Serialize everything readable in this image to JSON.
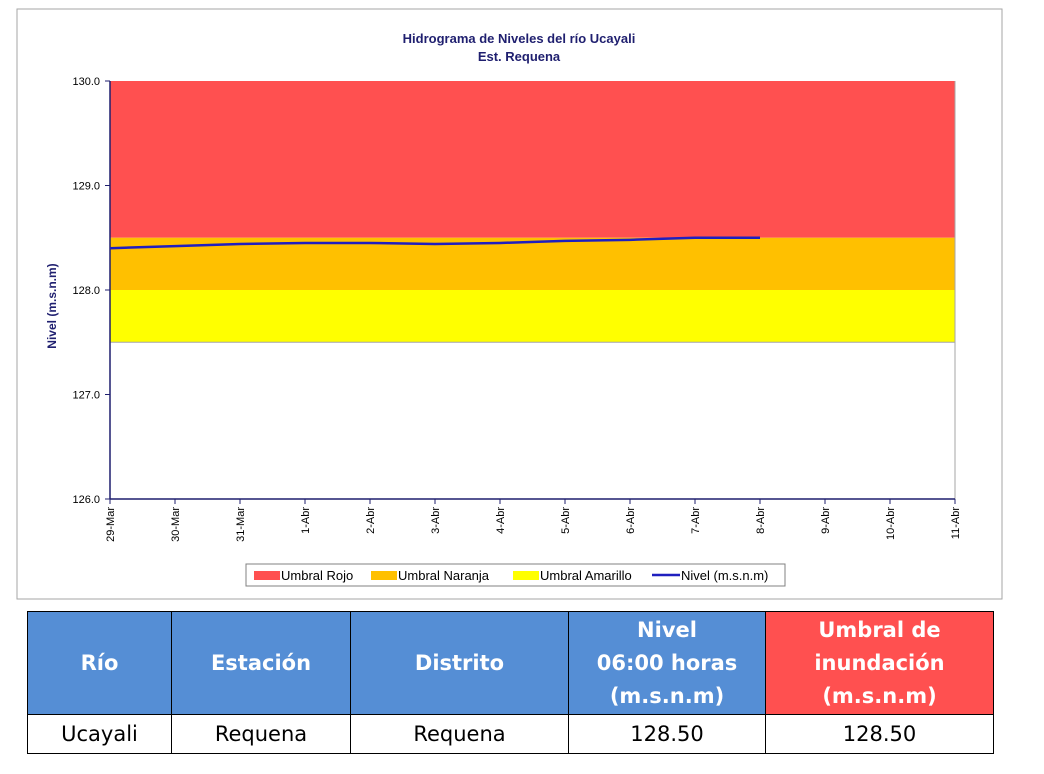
{
  "chart_data": {
    "type": "line",
    "title": "Hidrograma de Niveles del río Ucayali",
    "subtitle": "Est. Requena",
    "ylabel": "Nivel (m.s.n.m)",
    "categories": [
      "29-Mar",
      "30-Mar",
      "31-Mar",
      "1-Abr",
      "2-Abr",
      "3-Abr",
      "4-Abr",
      "5-Abr",
      "6-Abr",
      "7-Abr",
      "8-Abr",
      "9-Abr",
      "10-Abr",
      "11-Abr"
    ],
    "bands": [
      {
        "name": "Umbral Rojo",
        "color": "#ff5050",
        "from": 128.5,
        "to": 130
      },
      {
        "name": "Umbral Naranja",
        "color": "#ffc000",
        "from": 128.0,
        "to": 128.5
      },
      {
        "name": "Umbral Amarillo",
        "color": "#ffff00",
        "from": 127.5,
        "to": 128.0
      }
    ],
    "series": [
      {
        "name": "Nivel (m.s.n.m)",
        "color": "#1f1fbf",
        "values": [
          128.4,
          128.42,
          128.44,
          128.45,
          128.45,
          128.44,
          128.45,
          128.47,
          128.48,
          128.5,
          128.5,
          null,
          null,
          null
        ]
      }
    ],
    "ylim": [
      126,
      130
    ],
    "yticks": [
      {
        "value": 126,
        "label": "126.0"
      },
      {
        "value": 127,
        "label": "127.0"
      },
      {
        "value": 128,
        "label": "128.0"
      },
      {
        "value": 129,
        "label": "129.0"
      },
      {
        "value": 130,
        "label": "130.0"
      }
    ]
  },
  "table": {
    "headers": [
      [
        "Río"
      ],
      [
        "Estación"
      ],
      [
        "Distrito"
      ],
      [
        "Nivel",
        "06:00 horas",
        "(m.s.n.m)"
      ],
      [
        "Umbral de",
        "inundación",
        "(m.s.n.m)"
      ]
    ],
    "rows": [
      [
        "Ucayali",
        "Requena",
        "Requena",
        "128.50",
        "128.50"
      ]
    ]
  }
}
